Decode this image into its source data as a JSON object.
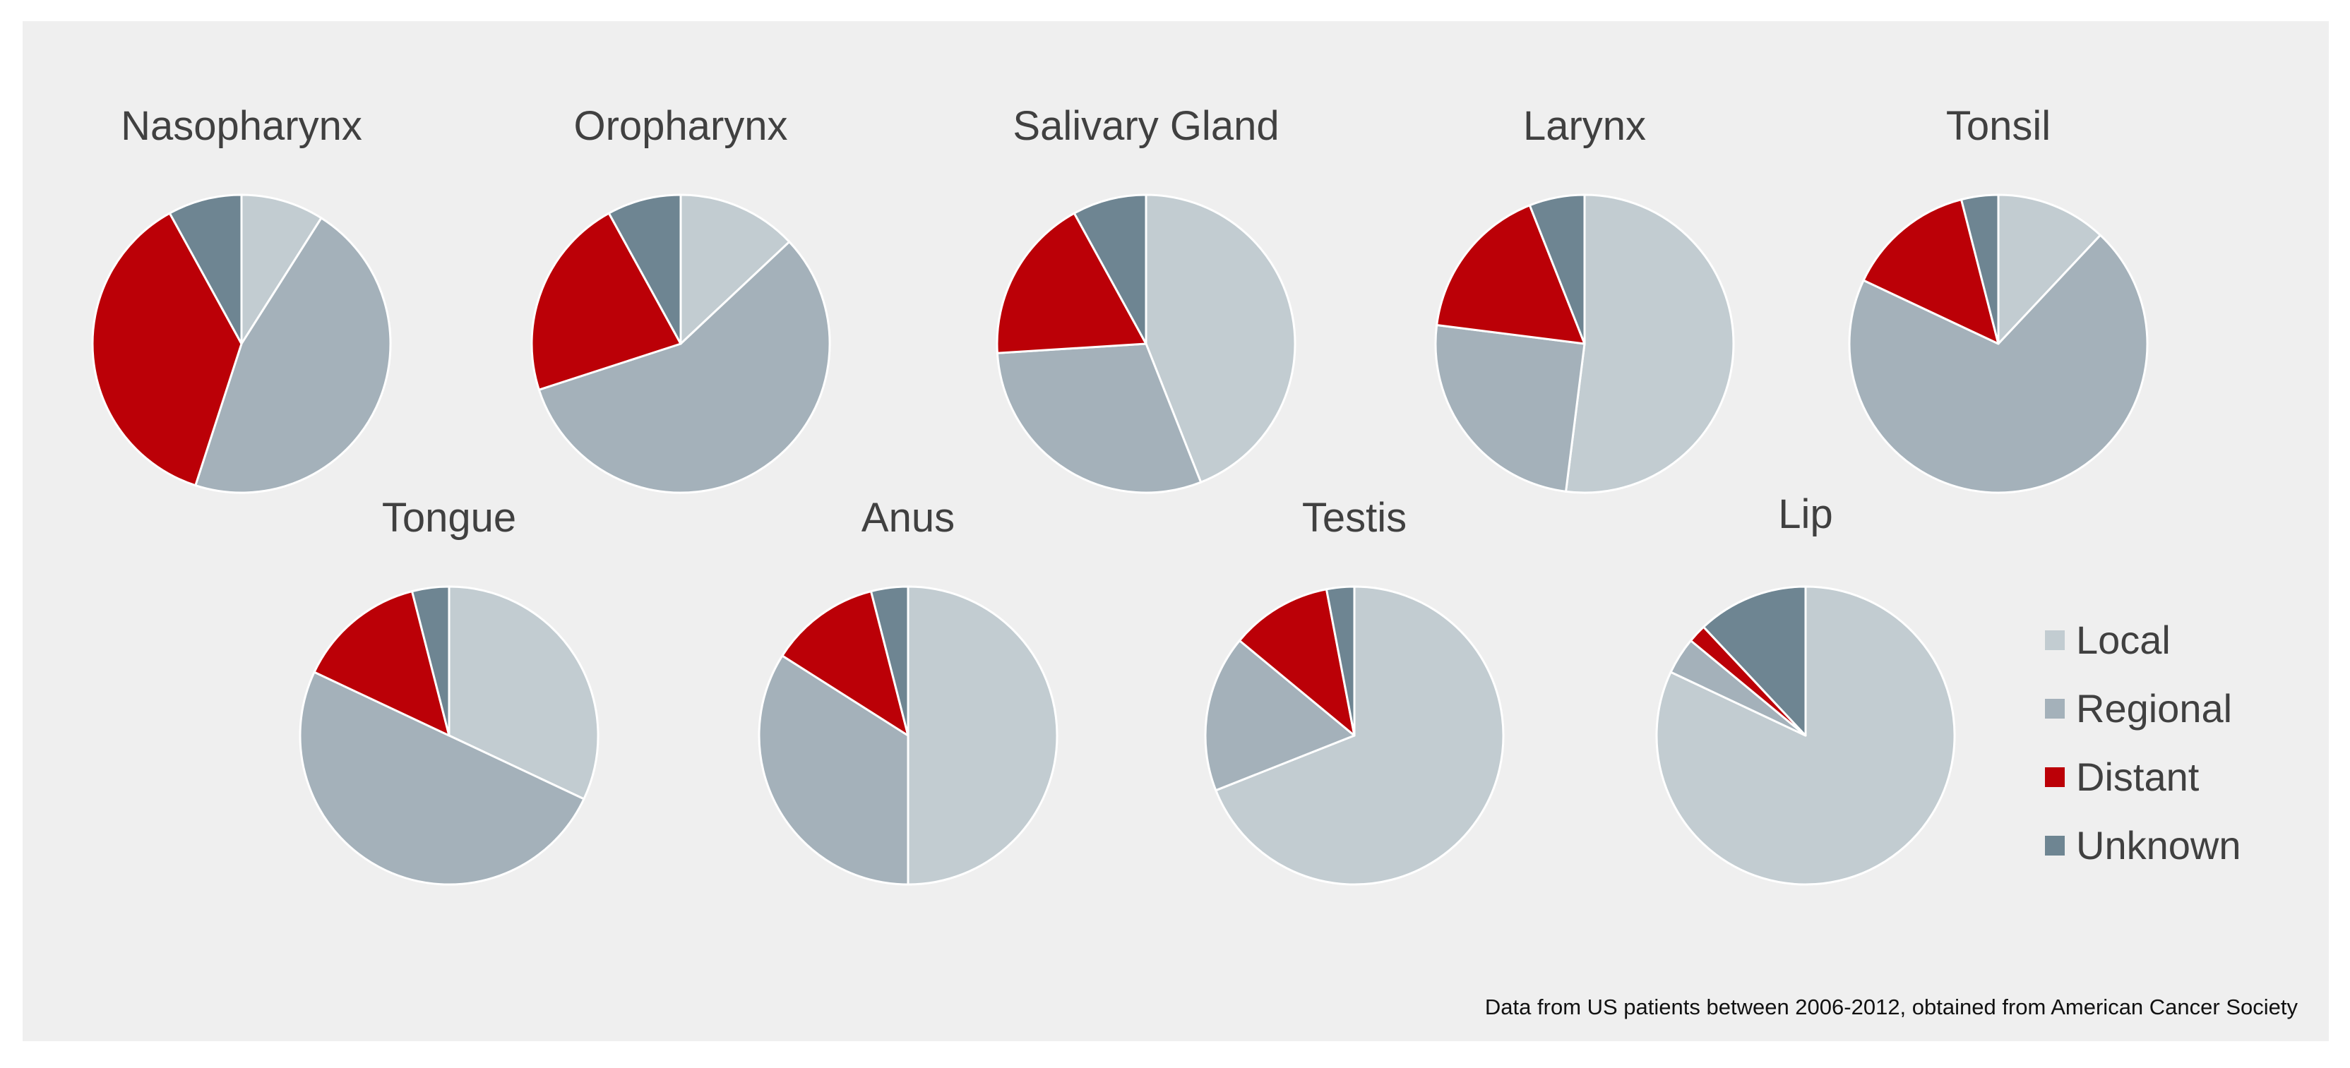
{
  "chart_data": {
    "type": "pie",
    "categories": [
      "Local",
      "Regional",
      "Distant",
      "Unknown"
    ],
    "colors": {
      "Local": "#c2ccd1",
      "Regional": "#a4b1ba",
      "Distant": "#bb0007",
      "Unknown": "#6e8592"
    },
    "pies": [
      {
        "title": "Nasopharynx",
        "values": [
          9,
          46,
          37,
          8
        ]
      },
      {
        "title": "Oropharynx",
        "values": [
          13,
          57,
          22,
          8
        ]
      },
      {
        "title": "Salivary Gland",
        "values": [
          44,
          30,
          18,
          8
        ]
      },
      {
        "title": "Larynx",
        "values": [
          52,
          25,
          17,
          6
        ]
      },
      {
        "title": "Tonsil",
        "values": [
          12,
          70,
          14,
          4
        ]
      },
      {
        "title": "Tongue",
        "values": [
          32,
          50,
          14,
          4
        ]
      },
      {
        "title": "Anus",
        "values": [
          50,
          34,
          12,
          4
        ]
      },
      {
        "title": "Testis",
        "values": [
          69,
          17,
          11,
          3
        ]
      },
      {
        "title": "Lip",
        "values": [
          82,
          4,
          2,
          12
        ]
      }
    ],
    "legend": [
      "Local",
      "Regional",
      "Distant",
      "Unknown"
    ],
    "legend_position": "bottom-right"
  },
  "note": "Data from US patients between 2006-2012, obtained from American Cancer Society"
}
